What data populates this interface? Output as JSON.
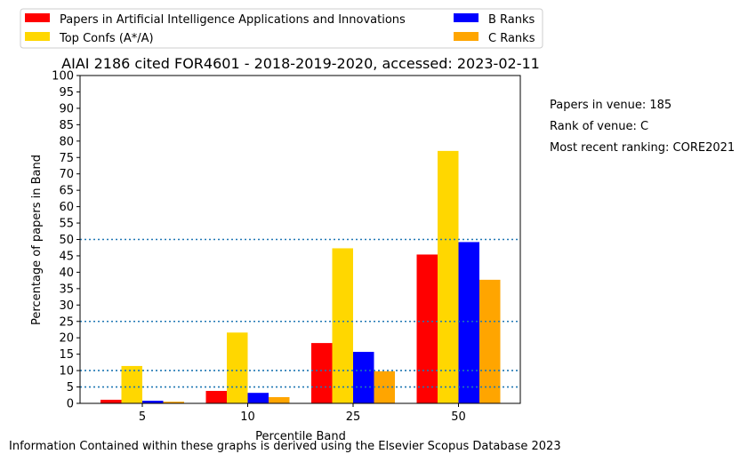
{
  "chart_data": {
    "type": "bar",
    "title": "AIAI 2186 cited FOR4601 - 2018-2019-2020, accessed: 2023-02-11",
    "xlabel": "Percentile Band",
    "ylabel": "Percentage of papers in Band",
    "categories": [
      "5",
      "10",
      "25",
      "50"
    ],
    "ylim": [
      0,
      100
    ],
    "yticks": [
      0,
      5,
      10,
      15,
      20,
      25,
      30,
      35,
      40,
      45,
      50,
      55,
      60,
      65,
      70,
      75,
      80,
      85,
      90,
      95,
      100
    ],
    "reference_lines": [
      5,
      10,
      25,
      50
    ],
    "legend_position": "above plot, two columns",
    "series": [
      {
        "name": "Papers in Artificial Intelligence Applications and Innovations",
        "color": "#ff0000",
        "values": [
          1.1,
          3.8,
          18.4,
          45.4
        ]
      },
      {
        "name": "Top Confs (A*/A)",
        "color": "#ffd700",
        "values": [
          11.4,
          21.6,
          47.3,
          77.0
        ]
      },
      {
        "name": "B Ranks",
        "color": "#0000ff",
        "values": [
          0.8,
          3.2,
          15.7,
          49.2
        ]
      },
      {
        "name": "C Ranks",
        "color": "#ffa500",
        "values": [
          0.5,
          1.9,
          9.8,
          37.7
        ]
      }
    ]
  },
  "side_notes": {
    "papers_in_venue": "Papers in venue: 185",
    "rank_of_venue": "Rank of venue: C",
    "recent_ranking": "Most recent ranking: CORE2021"
  },
  "footer": "Information Contained within these graphs is derived using the Elsevier Scopus Database 2023"
}
